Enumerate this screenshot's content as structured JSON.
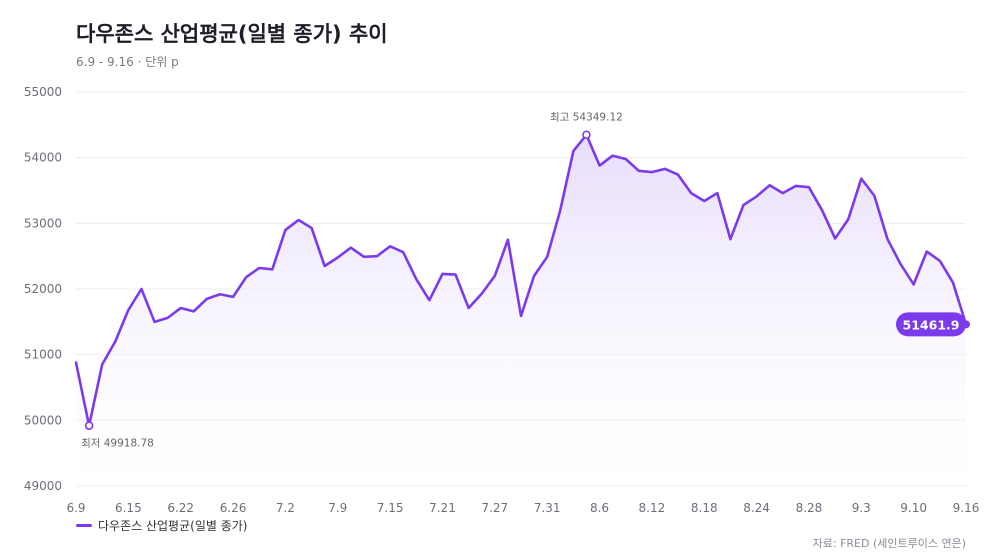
{
  "title": "다우존스 산업평균(일별 종가) 추이",
  "subtitle": "6.9 - 9.16 · 단위 p",
  "legend_label": "다우존스 산업평균(일별 종가)",
  "source": "자료: FRED (세인트루이스 연은)",
  "colors": {
    "line": "#7c3aed",
    "fill_top": "#e4d9fb",
    "fill_bottom": "#ffffff",
    "grid": "#ececf2",
    "axis_text": "#6e6e78"
  },
  "chart_data": {
    "type": "area",
    "x_tick_labels": [
      "6.9",
      "6.15",
      "6.22",
      "6.26",
      "7.2",
      "7.9",
      "7.15",
      "7.21",
      "7.27",
      "7.31",
      "8.6",
      "8.12",
      "8.18",
      "8.24",
      "8.28",
      "9.3",
      "9.10",
      "9.16"
    ],
    "y_ticks": [
      "49000",
      "50000",
      "51000",
      "52000",
      "53000",
      "54000",
      "55000"
    ],
    "ylim": [
      49000,
      55000
    ],
    "grid": true,
    "series": [
      {
        "name": "다우존스 산업평균(일별 종가)",
        "values": [
          50880,
          49919,
          50850,
          51200,
          51680,
          52000,
          51500,
          51560,
          51710,
          51660,
          51850,
          51920,
          51880,
          52180,
          52320,
          52300,
          52900,
          53050,
          52930,
          52350,
          52480,
          52630,
          52490,
          52500,
          52650,
          52560,
          52150,
          51830,
          52230,
          52220,
          51710,
          51930,
          52200,
          52750,
          51590,
          52200,
          52490,
          53200,
          54100,
          54349,
          53880,
          54030,
          53980,
          53800,
          53780,
          53830,
          53740,
          53460,
          53340,
          53460,
          52760,
          53280,
          53410,
          53580,
          53460,
          53570,
          53550,
          53200,
          52770,
          53060,
          53680,
          53420,
          52760,
          52380,
          52070,
          52570,
          52430,
          52100,
          51462
        ]
      }
    ],
    "annotations": {
      "max_label": "최고 54349.12",
      "min_label": "최저 49918.78",
      "last_value_label": "51461.9"
    }
  }
}
